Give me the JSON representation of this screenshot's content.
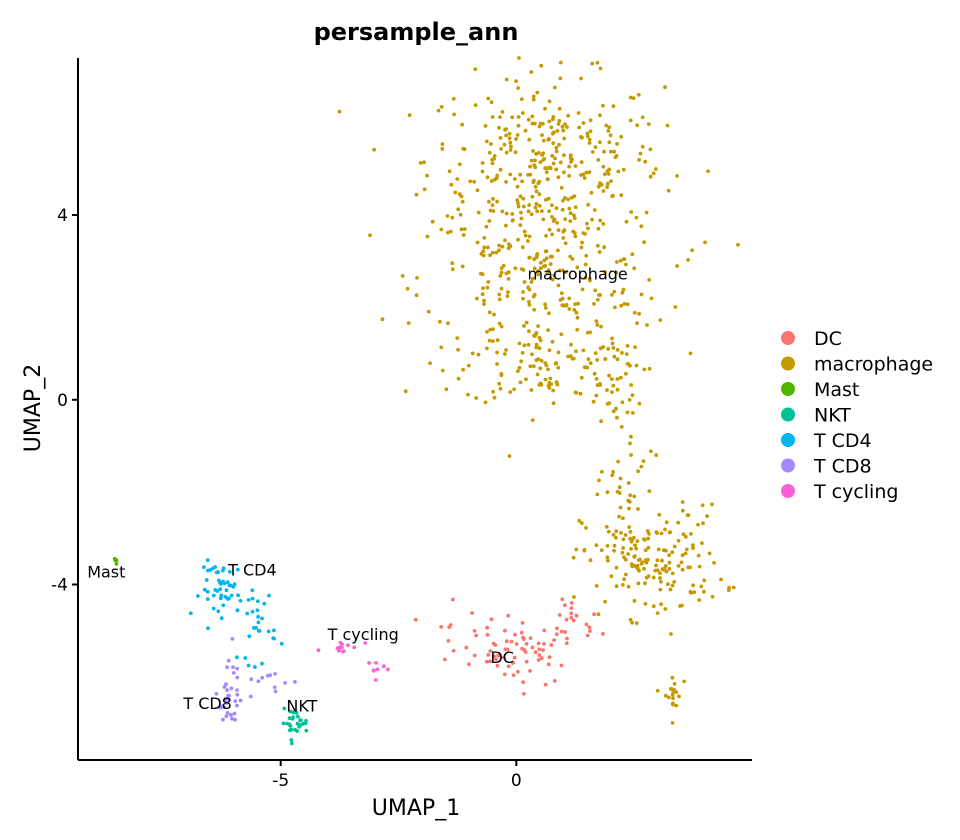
{
  "chart_data": {
    "type": "scatter",
    "title": "persample_ann",
    "xlabel": "UMAP_1",
    "ylabel": "UMAP_2",
    "xlim": [
      -9.3,
      5.0
    ],
    "ylim": [
      -7.8,
      7.4
    ],
    "x_ticks": [
      -5,
      0
    ],
    "y_ticks": [
      -4,
      0,
      4
    ],
    "grid": false,
    "legend_position": "right",
    "series": [
      {
        "name": "DC",
        "color": "#F8766D",
        "n": 95,
        "blobs": [
          {
            "cx": 0.3,
            "cy": -5.5,
            "sx": 0.45,
            "sy": 0.33,
            "w": 0.55
          },
          {
            "cx": -1.0,
            "cy": -5.2,
            "sx": 0.55,
            "sy": 0.35,
            "w": 0.25
          },
          {
            "cx": 1.2,
            "cy": -4.9,
            "sx": 0.3,
            "sy": 0.3,
            "w": 0.2
          }
        ]
      },
      {
        "name": "macrophage",
        "color": "#C49A00",
        "n": 900,
        "blobs": [
          {
            "cx": 0.6,
            "cy": 5.2,
            "sx": 1.25,
            "sy": 0.9,
            "w": 0.34
          },
          {
            "cx": 0.6,
            "cy": 2.6,
            "sx": 1.3,
            "sy": 0.95,
            "w": 0.28
          },
          {
            "cx": 0.5,
            "cy": 0.7,
            "sx": 0.8,
            "sy": 0.4,
            "w": 0.09
          },
          {
            "cx": 2.0,
            "cy": 0.4,
            "sx": 0.35,
            "sy": 0.7,
            "w": 0.05
          },
          {
            "cx": 2.3,
            "cy": -2.0,
            "sx": 0.3,
            "sy": 0.8,
            "w": 0.04
          },
          {
            "cx": 2.9,
            "cy": -3.5,
            "sx": 0.75,
            "sy": 0.6,
            "w": 0.18
          },
          {
            "cx": 3.3,
            "cy": -6.4,
            "sx": 0.1,
            "sy": 0.25,
            "w": 0.02
          }
        ]
      },
      {
        "name": "Mast",
        "color": "#53B400",
        "n": 4,
        "blobs": [
          {
            "cx": -8.5,
            "cy": -3.45,
            "sx": 0.05,
            "sy": 0.05,
            "w": 1
          }
        ]
      },
      {
        "name": "NKT",
        "color": "#00C094",
        "n": 28,
        "blobs": [
          {
            "cx": -4.7,
            "cy": -7.0,
            "sx": 0.14,
            "sy": 0.14,
            "w": 1
          }
        ]
      },
      {
        "name": "T CD4",
        "color": "#00B6EB",
        "n": 75,
        "blobs": [
          {
            "cx": -6.2,
            "cy": -4.1,
            "sx": 0.25,
            "sy": 0.3,
            "w": 0.6
          },
          {
            "cx": -5.5,
            "cy": -4.8,
            "sx": 0.2,
            "sy": 0.45,
            "w": 0.4
          }
        ]
      },
      {
        "name": "T CD8",
        "color": "#A58AFF",
        "n": 45,
        "blobs": [
          {
            "cx": -6.1,
            "cy": -6.6,
            "sx": 0.15,
            "sy": 0.2,
            "w": 0.55
          },
          {
            "cx": -6.0,
            "cy": -5.9,
            "sx": 0.1,
            "sy": 0.3,
            "w": 0.2
          },
          {
            "cx": -5.3,
            "cy": -6.1,
            "sx": 0.3,
            "sy": 0.15,
            "w": 0.25
          }
        ]
      },
      {
        "name": "T cycling",
        "color": "#FB61D7",
        "n": 20,
        "blobs": [
          {
            "cx": -3.6,
            "cy": -5.4,
            "sx": 0.25,
            "sy": 0.1,
            "w": 0.6
          },
          {
            "cx": -3.0,
            "cy": -5.8,
            "sx": 0.1,
            "sy": 0.12,
            "w": 0.4
          }
        ]
      }
    ],
    "cluster_labels": [
      {
        "text": "macrophage",
        "x": 1.3,
        "y": 2.6
      },
      {
        "text": "Mast",
        "x": -8.7,
        "y": -3.85
      },
      {
        "text": "T CD4",
        "x": -5.6,
        "y": -3.8
      },
      {
        "text": "T cycling",
        "x": -3.25,
        "y": -5.2
      },
      {
        "text": "DC",
        "x": -0.3,
        "y": -5.7
      },
      {
        "text": "T CD8",
        "x": -6.55,
        "y": -6.7
      },
      {
        "text": "NKT",
        "x": -4.55,
        "y": -6.75
      }
    ]
  }
}
